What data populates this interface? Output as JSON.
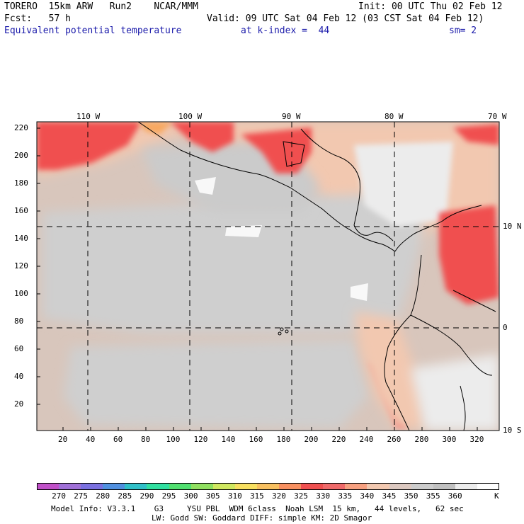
{
  "header": {
    "line1_left": "TORERO  15km ARW   Run2    NCAR/MMM",
    "line1_right": "Init: 00 UTC Thu 02 Feb 12",
    "line2_left": "Fcst:   57 h",
    "line2_right": "Valid: 09 UTC Sat 04 Feb 12 (03 CST Sat 04 Feb 12)",
    "field_name": "Equivalent potential temperature",
    "level": "at k-index =  44",
    "smoothing": "sm= 2"
  },
  "map": {
    "top_lon_labels": [
      "110 W",
      "100 W",
      "90 W",
      "80 W",
      "70 W"
    ],
    "right_lat_labels": [
      "10 N",
      "0",
      "10 S"
    ],
    "left_y_ticks": [
      "220",
      "200",
      "180",
      "160",
      "140",
      "120",
      "100",
      "80",
      "60",
      "40",
      "20"
    ],
    "bottom_x_ticks": [
      "20",
      "40",
      "60",
      "80",
      "100",
      "120",
      "140",
      "160",
      "180",
      "200",
      "220",
      "240",
      "260",
      "280",
      "300",
      "320"
    ]
  },
  "colorbar": {
    "unit": "K",
    "labels": [
      "270",
      "275",
      "280",
      "285",
      "290",
      "295",
      "300",
      "305",
      "310",
      "315",
      "320",
      "325",
      "330",
      "335",
      "340",
      "345",
      "350",
      "355",
      "360"
    ],
    "colors": [
      "#c050c8",
      "#a070d8",
      "#7a70e0",
      "#5090e0",
      "#30c0c8",
      "#30e0a0",
      "#50e070",
      "#90e060",
      "#d0e860",
      "#f8e060",
      "#f8c060",
      "#f89060",
      "#f05050",
      "#f06a6a",
      "#f7a080",
      "#f2c8b0",
      "#dcc8c0",
      "#cccccc",
      "#c0c0c0",
      "#ececec",
      "#ffffff"
    ]
  },
  "footer": {
    "line1": "Model Info: V3.3.1    G3     YSU PBL  WDM 6class  Noah LSM  15 km,   44 levels,   62 sec",
    "line2": "LW: Godd SW: Goddard DIFF: simple KM: 2D Smagor"
  }
}
